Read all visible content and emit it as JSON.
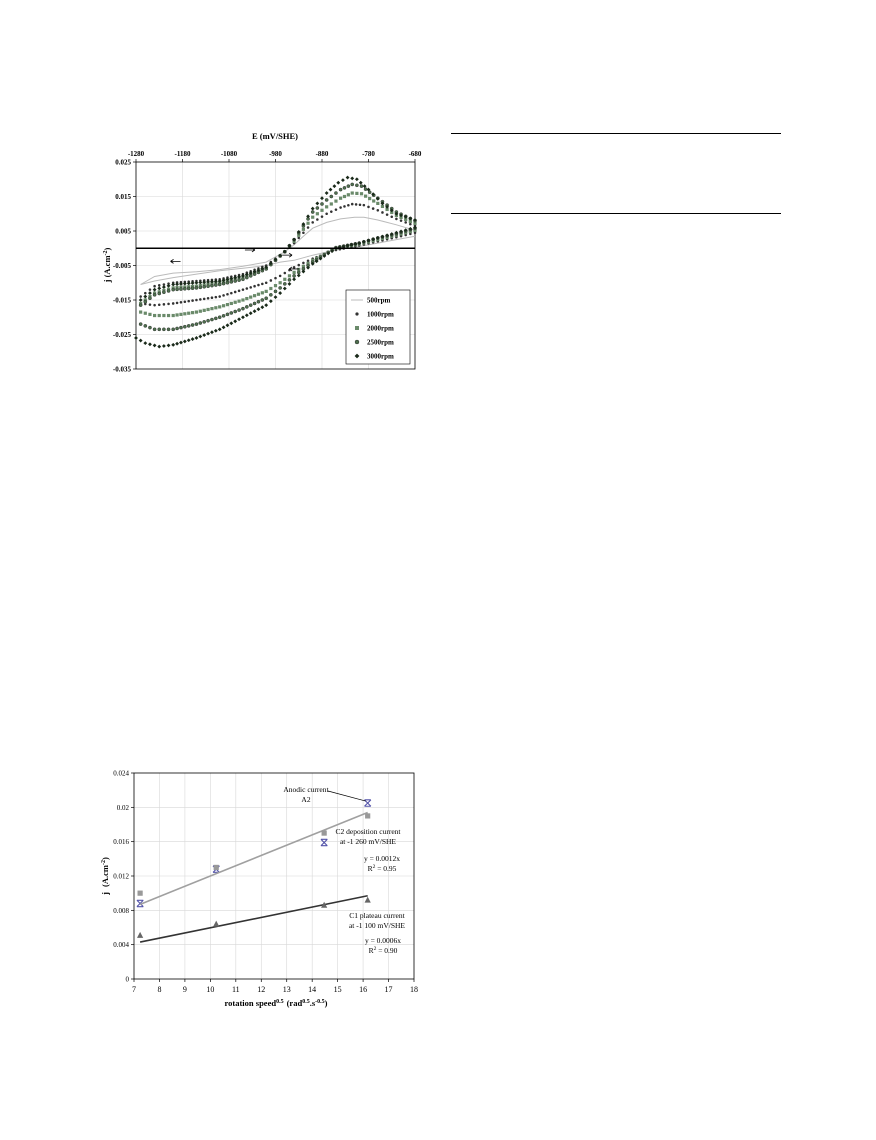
{
  "chart_data": [
    {
      "type": "scatter",
      "title": "",
      "xlabel": "E (mV/SHE)",
      "ylabel": "j (A.cm",
      "ylabel_sup": "-2",
      "ylabel_close": ")",
      "x_axis_position": "top",
      "xlim": [
        -1280,
        -680
      ],
      "ylim": [
        -0.035,
        0.025
      ],
      "x_ticks": [
        "-1280",
        "-1180",
        "-1080",
        "-980",
        "-880",
        "-780",
        "-680"
      ],
      "y_ticks": [
        "0.025",
        "0.015",
        "0.005",
        "-0.005",
        "-0.015",
        "-0.025",
        "-0.035"
      ],
      "grid": true,
      "legend_position": "bottom-right",
      "series": [
        {
          "name": "500rpm",
          "marker": "line",
          "color": "#bbbbbb",
          "forward": [
            [
              -1270,
              -0.0105
            ],
            [
              -1240,
              -0.0082
            ],
            [
              -1200,
              -0.0072
            ],
            [
              -1150,
              -0.0068
            ],
            [
              -1100,
              -0.0062
            ],
            [
              -1050,
              -0.0052
            ],
            [
              -1000,
              -0.004
            ],
            [
              -960,
              -0.001
            ],
            [
              -940,
              0.001
            ],
            [
              -920,
              0.0035
            ],
            [
              -900,
              0.0058
            ],
            [
              -870,
              0.0075
            ],
            [
              -840,
              0.0085
            ],
            [
              -810,
              0.009
            ],
            [
              -790,
              0.009
            ],
            [
              -760,
              0.0082
            ],
            [
              -720,
              0.0068
            ],
            [
              -680,
              0.0052
            ]
          ],
          "reverse": [
            [
              -680,
              0.0035
            ],
            [
              -720,
              0.0025
            ],
            [
              -760,
              0.0015
            ],
            [
              -800,
              0.0005
            ],
            [
              -850,
              -0.0005
            ],
            [
              -900,
              -0.002
            ],
            [
              -940,
              -0.0035
            ],
            [
              -970,
              -0.004
            ],
            [
              -1000,
              -0.005
            ],
            [
              -1050,
              -0.0058
            ],
            [
              -1100,
              -0.0065
            ],
            [
              -1150,
              -0.0075
            ],
            [
              -1200,
              -0.0085
            ],
            [
              -1240,
              -0.0095
            ],
            [
              -1270,
              -0.0105
            ]
          ]
        },
        {
          "name": "1000rpm",
          "marker": "dot",
          "color": "#333333",
          "forward": [
            [
              -1270,
              -0.014
            ],
            [
              -1240,
              -0.011
            ],
            [
              -1200,
              -0.01
            ],
            [
              -1150,
              -0.0095
            ],
            [
              -1100,
              -0.009
            ],
            [
              -1050,
              -0.0075
            ],
            [
              -1000,
              -0.005
            ],
            [
              -960,
              -0.001
            ],
            [
              -940,
              0.0015
            ],
            [
              -920,
              0.0045
            ],
            [
              -900,
              0.0075
            ],
            [
              -870,
              0.01
            ],
            [
              -840,
              0.0118
            ],
            [
              -815,
              0.0128
            ],
            [
              -790,
              0.0125
            ],
            [
              -760,
              0.011
            ],
            [
              -720,
              0.0085
            ],
            [
              -680,
              0.0065
            ]
          ],
          "reverse": [
            [
              -680,
              0.0045
            ],
            [
              -720,
              0.0032
            ],
            [
              -760,
              0.002
            ],
            [
              -800,
              0.0008
            ],
            [
              -850,
              -0.0005
            ],
            [
              -900,
              -0.003
            ],
            [
              -940,
              -0.0055
            ],
            [
              -970,
              -0.008
            ],
            [
              -1000,
              -0.01
            ],
            [
              -1050,
              -0.012
            ],
            [
              -1100,
              -0.014
            ],
            [
              -1150,
              -0.015
            ],
            [
              -1200,
              -0.016
            ],
            [
              -1240,
              -0.0165
            ],
            [
              -1270,
              -0.016
            ]
          ]
        },
        {
          "name": "2000rpm",
          "marker": "square",
          "color": "#6a8a6a",
          "forward": [
            [
              -1270,
              -0.016
            ],
            [
              -1240,
              -0.013
            ],
            [
              -1200,
              -0.0115
            ],
            [
              -1150,
              -0.011
            ],
            [
              -1100,
              -0.01
            ],
            [
              -1050,
              -0.0085
            ],
            [
              -1000,
              -0.0058
            ],
            [
              -960,
              -0.001
            ],
            [
              -940,
              0.002
            ],
            [
              -920,
              0.0055
            ],
            [
              -900,
              0.009
            ],
            [
              -870,
              0.012
            ],
            [
              -840,
              0.0145
            ],
            [
              -815,
              0.016
            ],
            [
              -795,
              0.0158
            ],
            [
              -760,
              0.013
            ],
            [
              -720,
              0.0095
            ],
            [
              -680,
              0.0072
            ]
          ],
          "reverse": [
            [
              -680,
              0.0052
            ],
            [
              -720,
              0.0038
            ],
            [
              -760,
              0.0025
            ],
            [
              -800,
              0.0012
            ],
            [
              -850,
              0.0
            ],
            [
              -900,
              -0.0035
            ],
            [
              -940,
              -0.007
            ],
            [
              -970,
              -0.01
            ],
            [
              -1000,
              -0.0125
            ],
            [
              -1050,
              -0.015
            ],
            [
              -1100,
              -0.017
            ],
            [
              -1150,
              -0.0185
            ],
            [
              -1200,
              -0.0195
            ],
            [
              -1240,
              -0.0195
            ],
            [
              -1270,
              -0.0185
            ]
          ]
        },
        {
          "name": "2500rpm",
          "marker": "circle",
          "color": "#4f6f4f",
          "forward": [
            [
              -1270,
              -0.0165
            ],
            [
              -1240,
              -0.0135
            ],
            [
              -1200,
              -0.012
            ],
            [
              -1150,
              -0.0115
            ],
            [
              -1100,
              -0.0105
            ],
            [
              -1050,
              -0.009
            ],
            [
              -1000,
              -0.006
            ],
            [
              -960,
              -0.001
            ],
            [
              -940,
              0.0025
            ],
            [
              -920,
              0.0065
            ],
            [
              -900,
              0.0105
            ],
            [
              -870,
              0.014
            ],
            [
              -840,
              0.017
            ],
            [
              -815,
              0.0185
            ],
            [
              -795,
              0.018
            ],
            [
              -760,
              0.0145
            ],
            [
              -720,
              0.0105
            ],
            [
              -680,
              0.008
            ]
          ],
          "reverse": [
            [
              -680,
              0.0058
            ],
            [
              -720,
              0.0042
            ],
            [
              -760,
              0.003
            ],
            [
              -800,
              0.0015
            ],
            [
              -850,
              0.0002
            ],
            [
              -900,
              -0.004
            ],
            [
              -940,
              -0.008
            ],
            [
              -970,
              -0.0115
            ],
            [
              -1000,
              -0.0145
            ],
            [
              -1050,
              -0.0175
            ],
            [
              -1100,
              -0.02
            ],
            [
              -1150,
              -0.022
            ],
            [
              -1200,
              -0.0235
            ],
            [
              -1240,
              -0.0235
            ],
            [
              -1270,
              -0.022
            ]
          ]
        },
        {
          "name": "3000rpm",
          "marker": "diamond",
          "color": "#1a2a1a",
          "forward": [
            [
              -1270,
              -0.015
            ],
            [
              -1240,
              -0.012
            ],
            [
              -1200,
              -0.0105
            ],
            [
              -1150,
              -0.01
            ],
            [
              -1100,
              -0.0095
            ],
            [
              -1050,
              -0.008
            ],
            [
              -1000,
              -0.0055
            ],
            [
              -960,
              -0.001
            ],
            [
              -940,
              0.0025
            ],
            [
              -920,
              0.007
            ],
            [
              -900,
              0.0115
            ],
            [
              -870,
              0.016
            ],
            [
              -845,
              0.019
            ],
            [
              -825,
              0.0205
            ],
            [
              -805,
              0.02
            ],
            [
              -780,
              0.017
            ],
            [
              -750,
              0.013
            ],
            [
              -720,
              0.01
            ],
            [
              -680,
              0.0082
            ]
          ],
          "reverse": [
            [
              -680,
              0.006
            ],
            [
              -720,
              0.0045
            ],
            [
              -760,
              0.003
            ],
            [
              -800,
              0.0015
            ],
            [
              -850,
              0.0
            ],
            [
              -900,
              -0.0045
            ],
            [
              -940,
              -0.009
            ],
            [
              -970,
              -0.013
            ],
            [
              -1000,
              -0.0165
            ],
            [
              -1050,
              -0.02
            ],
            [
              -1100,
              -0.0235
            ],
            [
              -1150,
              -0.026
            ],
            [
              -1200,
              -0.028
            ],
            [
              -1230,
              -0.0285
            ],
            [
              -1260,
              -0.0275
            ],
            [
              -1280,
              -0.026
            ]
          ]
        }
      ],
      "arrows": [
        {
          "x": -1195,
          "y": -0.0038,
          "dir": "left"
        },
        {
          "x": -1035,
          "y": -0.0005,
          "dir": "right"
        },
        {
          "x": -955,
          "y": -0.002,
          "dir": "right"
        },
        {
          "x": -940,
          "y": -0.006,
          "dir": "left"
        }
      ]
    },
    {
      "type": "scatter",
      "title": "",
      "xlabel": "rotation speed",
      "xlabel_sup1": "0.5",
      "xlabel_unit": "(rad",
      "xlabel_sup2": "0.5",
      "xlabel_unit2": ".s",
      "xlabel_sup3": "-0.5",
      "xlabel_close": ")",
      "ylabel": "j",
      "ylabel_unit": "(A.cm",
      "ylabel_sup": "-2",
      "ylabel_close": ")",
      "xlim": [
        7,
        18
      ],
      "ylim": [
        0,
        0.024
      ],
      "x_ticks": [
        "7",
        "8",
        "9",
        "10",
        "11",
        "12",
        "13",
        "14",
        "15",
        "16",
        "17",
        "18"
      ],
      "y_ticks": [
        "0.024",
        "0.02",
        "0.016",
        "0.012",
        "0.008",
        "0.004",
        "0"
      ],
      "grid": true,
      "series": [
        {
          "name": "Anodic current A2",
          "marker": "x",
          "color": "#5555aa",
          "points": [
            [
              7.24,
              0.0088
            ],
            [
              10.23,
              0.0128
            ],
            [
              14.47,
              0.0159
            ],
            [
              16.18,
              0.0205
            ]
          ]
        },
        {
          "name": "C2 deposition current at -1 260 mV/SHE",
          "marker": "square",
          "color": "#999999",
          "points": [
            [
              7.24,
              0.01
            ],
            [
              10.23,
              0.013
            ],
            [
              14.47,
              0.017
            ],
            [
              16.18,
              0.019
            ]
          ],
          "fit_slope": 0.0012,
          "fit_line": [
            [
              7.24,
              0.0087
            ],
            [
              16.18,
              0.0194
            ]
          ],
          "line_color": "#a0a0a0"
        },
        {
          "name": "C1 plateau current at -1 100 mV/SHE",
          "marker": "triangle",
          "color": "#666666",
          "points": [
            [
              7.24,
              0.0051
            ],
            [
              10.23,
              0.0064
            ],
            [
              14.47,
              0.0086
            ],
            [
              16.18,
              0.0092
            ]
          ],
          "fit_slope": 0.0006,
          "fit_line": [
            [
              7.24,
              0.0043
            ],
            [
              16.18,
              0.0097
            ]
          ],
          "line_color": "#333333"
        }
      ],
      "annotations": [
        {
          "lines": [
            "Anodic current",
            "A2"
          ]
        },
        {
          "lines": [
            "C2 deposition current",
            "at -1 260 mV/SHE"
          ]
        },
        {
          "lines": [
            "y = 0.0012x",
            "R"
          ],
          "sup": "2",
          "tail": " = 0.95"
        },
        {
          "lines": [
            "C1 plateau current",
            "at -1 100 mV/SHE"
          ]
        },
        {
          "lines": [
            "y = 0.0006x",
            "R"
          ],
          "sup": "2",
          "tail": " = 0.90"
        }
      ]
    }
  ]
}
